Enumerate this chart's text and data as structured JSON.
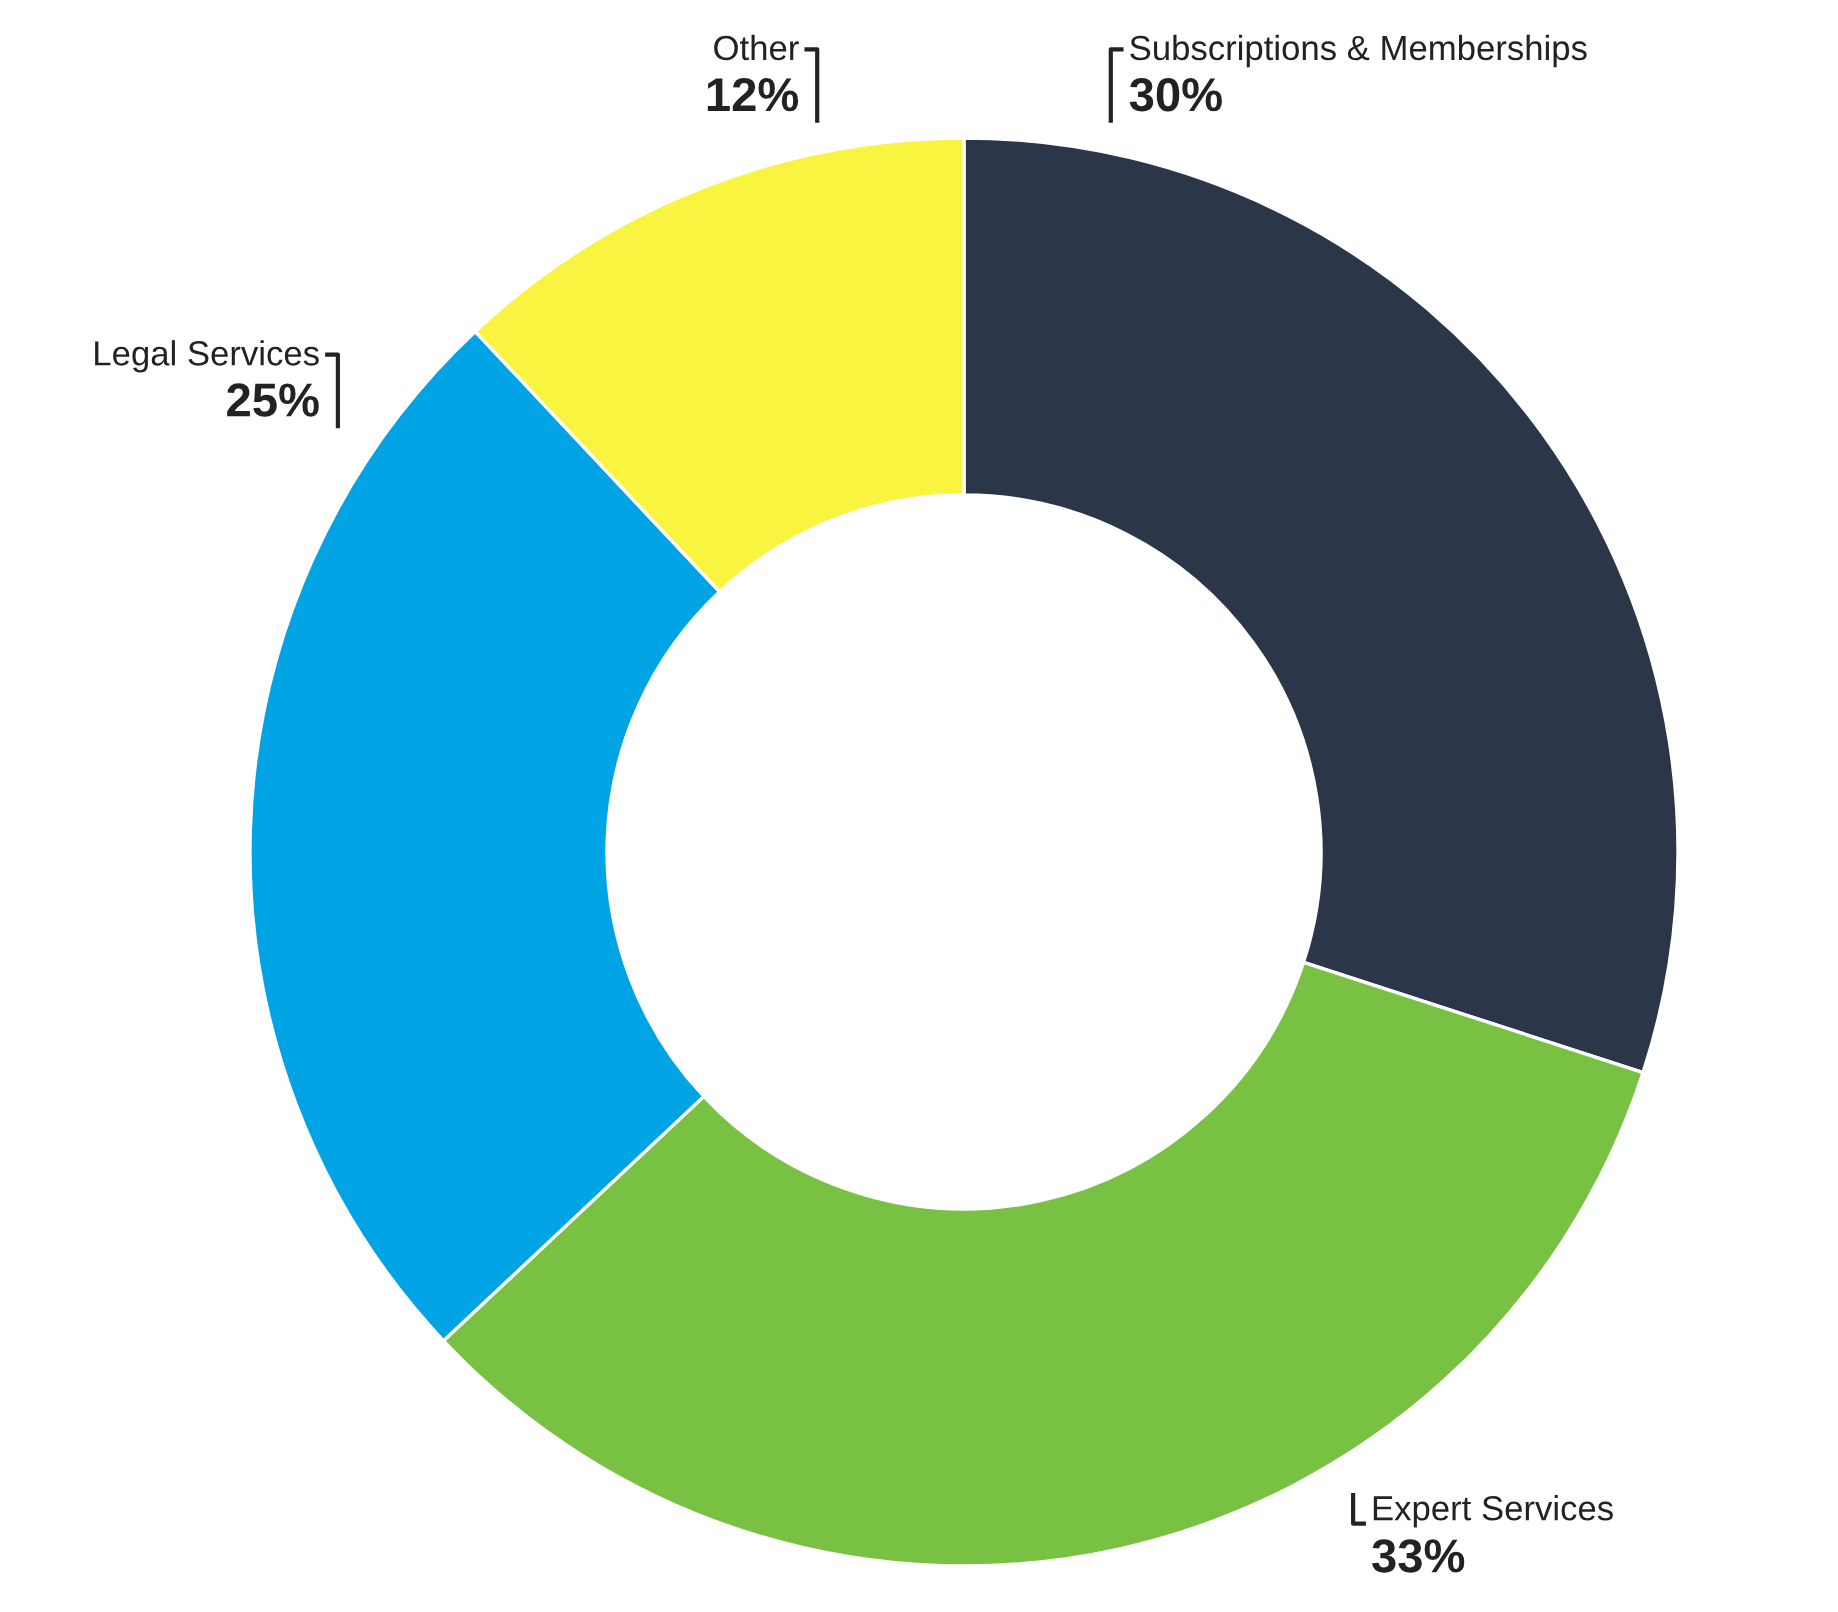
{
  "chart_data": {
    "type": "donut",
    "categories": [
      "Subscriptions & Memberships",
      "Expert Services",
      "Legal Services",
      "Other"
    ],
    "values": [
      30,
      33,
      25,
      12
    ],
    "colors": [
      "#2b3648",
      "#78c143",
      "#00a3e4",
      "#f8f43f"
    ],
    "value_labels": [
      "30%",
      "33%",
      "25%",
      "12%"
    ]
  }
}
